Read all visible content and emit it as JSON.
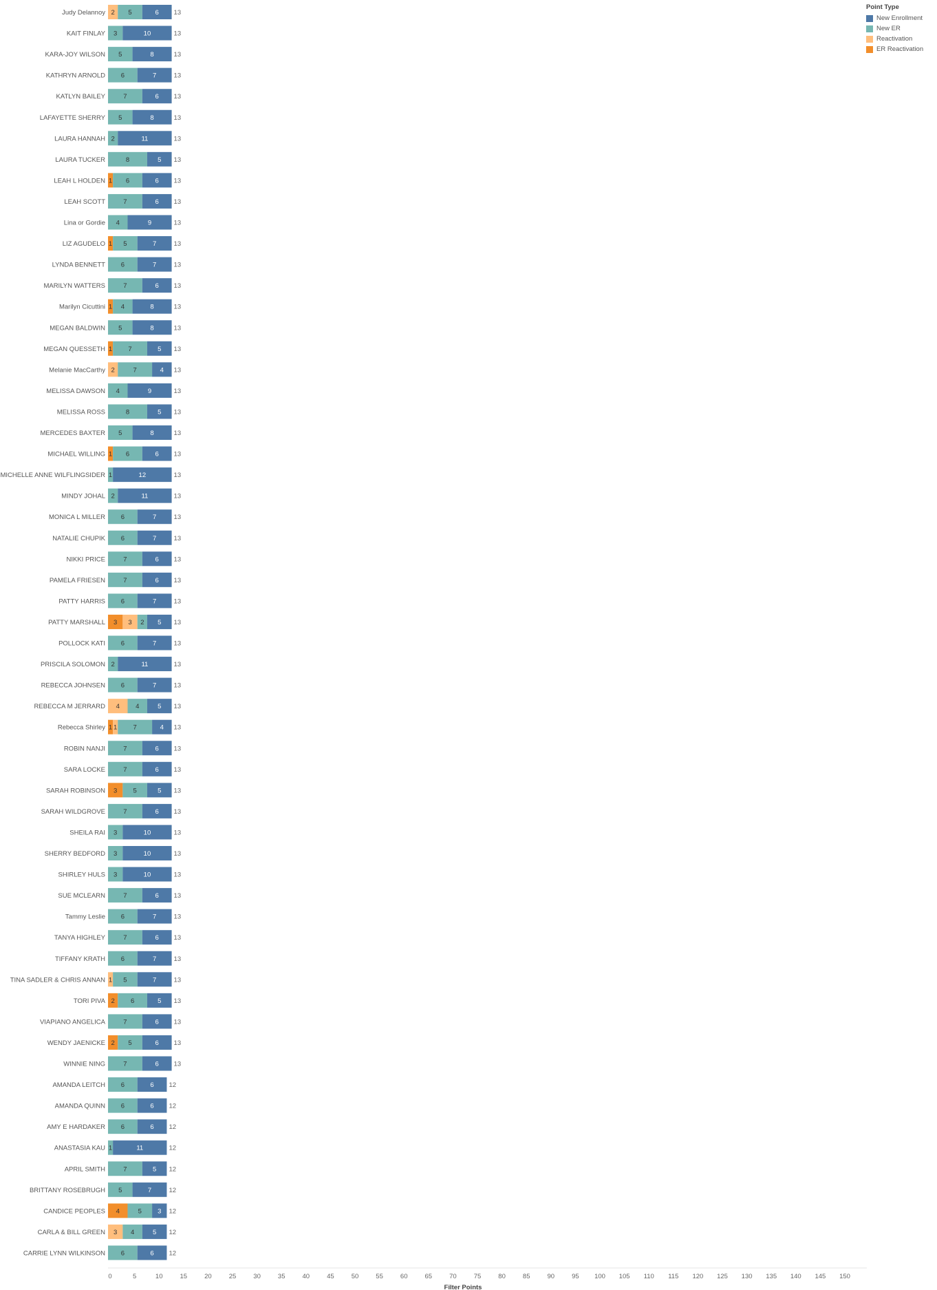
{
  "chart_data": {
    "type": "bar",
    "orientation": "horizontal",
    "stacked": true,
    "xlabel": "Filter Points",
    "xlim": [
      0,
      150
    ],
    "xticks": [
      0,
      5,
      10,
      15,
      20,
      25,
      30,
      35,
      40,
      45,
      50,
      55,
      60,
      65,
      70,
      75,
      80,
      85,
      90,
      95,
      100,
      105,
      110,
      115,
      120,
      125,
      130,
      135,
      140,
      145,
      150
    ],
    "grid": false,
    "legend": {
      "title": "Point Type",
      "placement": "top-right",
      "items": [
        "New Enrollment",
        "New ER",
        "Reactivation",
        "ER Reactivation"
      ]
    },
    "stack_order": [
      "ER Reactivation",
      "Reactivation",
      "New ER",
      "New Enrollment"
    ],
    "colors": {
      "New Enrollment": "#4e79a7",
      "New ER": "#76b7b2",
      "Reactivation": "#ffbe7d",
      "ER Reactivation": "#f28e2b"
    },
    "rows": [
      {
        "name": "Judy Delannoy",
        "er_reactivation": 0,
        "reactivation": 2,
        "new_er": 5,
        "new_enrollment": 6,
        "total": 13
      },
      {
        "name": "KAIT FINLAY",
        "er_reactivation": 0,
        "reactivation": 0,
        "new_er": 3,
        "new_enrollment": 10,
        "total": 13
      },
      {
        "name": "KARA-JOY  WILSON",
        "er_reactivation": 0,
        "reactivation": 0,
        "new_er": 5,
        "new_enrollment": 8,
        "total": 13
      },
      {
        "name": "KATHRYN ARNOLD",
        "er_reactivation": 0,
        "reactivation": 0,
        "new_er": 6,
        "new_enrollment": 7,
        "total": 13
      },
      {
        "name": "KATLYN BAILEY",
        "er_reactivation": 0,
        "reactivation": 0,
        "new_er": 7,
        "new_enrollment": 6,
        "total": 13
      },
      {
        "name": "LAFAYETTE SHERRY",
        "er_reactivation": 0,
        "reactivation": 0,
        "new_er": 5,
        "new_enrollment": 8,
        "total": 13
      },
      {
        "name": "LAURA  HANNAH",
        "er_reactivation": 0,
        "reactivation": 0,
        "new_er": 2,
        "new_enrollment": 11,
        "total": 13
      },
      {
        "name": "LAURA TUCKER",
        "er_reactivation": 0,
        "reactivation": 0,
        "new_er": 8,
        "new_enrollment": 5,
        "total": 13
      },
      {
        "name": "LEAH L HOLDEN",
        "er_reactivation": 1,
        "reactivation": 0,
        "new_er": 6,
        "new_enrollment": 6,
        "total": 13
      },
      {
        "name": "LEAH SCOTT",
        "er_reactivation": 0,
        "reactivation": 0,
        "new_er": 7,
        "new_enrollment": 6,
        "total": 13
      },
      {
        "name": "Lina or Gordie",
        "er_reactivation": 0,
        "reactivation": 0,
        "new_er": 4,
        "new_enrollment": 9,
        "total": 13
      },
      {
        "name": "LIZ AGUDELO",
        "er_reactivation": 1,
        "reactivation": 0,
        "new_er": 5,
        "new_enrollment": 7,
        "total": 13
      },
      {
        "name": "LYNDA BENNETT",
        "er_reactivation": 0,
        "reactivation": 0,
        "new_er": 6,
        "new_enrollment": 7,
        "total": 13
      },
      {
        "name": "MARILYN  WATTERS",
        "er_reactivation": 0,
        "reactivation": 0,
        "new_er": 7,
        "new_enrollment": 6,
        "total": 13
      },
      {
        "name": "Marilyn Cicuttini",
        "er_reactivation": 1,
        "reactivation": 0,
        "new_er": 4,
        "new_enrollment": 8,
        "total": 13
      },
      {
        "name": "MEGAN BALDWIN",
        "er_reactivation": 0,
        "reactivation": 0,
        "new_er": 5,
        "new_enrollment": 8,
        "total": 13
      },
      {
        "name": "MEGAN QUESSETH",
        "er_reactivation": 1,
        "reactivation": 0,
        "new_er": 7,
        "new_enrollment": 5,
        "total": 13
      },
      {
        "name": "Melanie MacCarthy",
        "er_reactivation": 0,
        "reactivation": 2,
        "new_er": 7,
        "new_enrollment": 4,
        "total": 13
      },
      {
        "name": "MELISSA  DAWSON",
        "er_reactivation": 0,
        "reactivation": 0,
        "new_er": 4,
        "new_enrollment": 9,
        "total": 13
      },
      {
        "name": "MELISSA  ROSS",
        "er_reactivation": 0,
        "reactivation": 0,
        "new_er": 8,
        "new_enrollment": 5,
        "total": 13
      },
      {
        "name": "MERCEDES BAXTER",
        "er_reactivation": 0,
        "reactivation": 0,
        "new_er": 5,
        "new_enrollment": 8,
        "total": 13
      },
      {
        "name": "MICHAEL WILLING",
        "er_reactivation": 1,
        "reactivation": 0,
        "new_er": 6,
        "new_enrollment": 6,
        "total": 13
      },
      {
        "name": "MICHELLE ANNE WILFLINGSIDER",
        "er_reactivation": 0,
        "reactivation": 0,
        "new_er": 1,
        "new_enrollment": 12,
        "total": 13
      },
      {
        "name": "MINDY JOHAL",
        "er_reactivation": 0,
        "reactivation": 0,
        "new_er": 2,
        "new_enrollment": 11,
        "total": 13
      },
      {
        "name": "MONICA L MILLER",
        "er_reactivation": 0,
        "reactivation": 0,
        "new_er": 6,
        "new_enrollment": 7,
        "total": 13
      },
      {
        "name": "NATALIE CHUPIK",
        "er_reactivation": 0,
        "reactivation": 0,
        "new_er": 6,
        "new_enrollment": 7,
        "total": 13
      },
      {
        "name": "NIKKI  PRICE",
        "er_reactivation": 0,
        "reactivation": 0,
        "new_er": 7,
        "new_enrollment": 6,
        "total": 13
      },
      {
        "name": "PAMELA FRIESEN",
        "er_reactivation": 0,
        "reactivation": 0,
        "new_er": 7,
        "new_enrollment": 6,
        "total": 13
      },
      {
        "name": "PATTY  HARRIS",
        "er_reactivation": 0,
        "reactivation": 0,
        "new_er": 6,
        "new_enrollment": 7,
        "total": 13
      },
      {
        "name": "PATTY  MARSHALL",
        "er_reactivation": 3,
        "reactivation": 3,
        "new_er": 2,
        "new_enrollment": 5,
        "total": 13
      },
      {
        "name": "POLLOCK KATI",
        "er_reactivation": 0,
        "reactivation": 0,
        "new_er": 6,
        "new_enrollment": 7,
        "total": 13
      },
      {
        "name": "PRISCILA SOLOMON",
        "er_reactivation": 0,
        "reactivation": 0,
        "new_er": 2,
        "new_enrollment": 11,
        "total": 13
      },
      {
        "name": "REBECCA JOHNSEN",
        "er_reactivation": 0,
        "reactivation": 0,
        "new_er": 6,
        "new_enrollment": 7,
        "total": 13
      },
      {
        "name": "REBECCA M JERRARD",
        "er_reactivation": 0,
        "reactivation": 4,
        "new_er": 4,
        "new_enrollment": 5,
        "total": 13
      },
      {
        "name": "Rebecca Shirley",
        "er_reactivation": 1,
        "reactivation": 1,
        "new_er": 7,
        "new_enrollment": 4,
        "total": 13
      },
      {
        "name": "ROBIN  NANJI",
        "er_reactivation": 0,
        "reactivation": 0,
        "new_er": 7,
        "new_enrollment": 6,
        "total": 13
      },
      {
        "name": "SARA LOCKE",
        "er_reactivation": 0,
        "reactivation": 0,
        "new_er": 7,
        "new_enrollment": 6,
        "total": 13
      },
      {
        "name": "SARAH ROBINSON",
        "er_reactivation": 3,
        "reactivation": 0,
        "new_er": 5,
        "new_enrollment": 5,
        "total": 13
      },
      {
        "name": "SARAH WILDGROVE",
        "er_reactivation": 0,
        "reactivation": 0,
        "new_er": 7,
        "new_enrollment": 6,
        "total": 13
      },
      {
        "name": "SHEILA RAI",
        "er_reactivation": 0,
        "reactivation": 0,
        "new_er": 3,
        "new_enrollment": 10,
        "total": 13
      },
      {
        "name": "SHERRY BEDFORD",
        "er_reactivation": 0,
        "reactivation": 0,
        "new_er": 3,
        "new_enrollment": 10,
        "total": 13
      },
      {
        "name": "SHIRLEY HULS",
        "er_reactivation": 0,
        "reactivation": 0,
        "new_er": 3,
        "new_enrollment": 10,
        "total": 13
      },
      {
        "name": "SUE MCLEARN",
        "er_reactivation": 0,
        "reactivation": 0,
        "new_er": 7,
        "new_enrollment": 6,
        "total": 13
      },
      {
        "name": "Tammy Leslie",
        "er_reactivation": 0,
        "reactivation": 0,
        "new_er": 6,
        "new_enrollment": 7,
        "total": 13
      },
      {
        "name": "TANYA HIGHLEY",
        "er_reactivation": 0,
        "reactivation": 0,
        "new_er": 7,
        "new_enrollment": 6,
        "total": 13
      },
      {
        "name": "TIFFANY  KRATH",
        "er_reactivation": 0,
        "reactivation": 0,
        "new_er": 6,
        "new_enrollment": 7,
        "total": 13
      },
      {
        "name": "TINA SADLER & CHRIS ANNAN",
        "er_reactivation": 0,
        "reactivation": 1,
        "new_er": 5,
        "new_enrollment": 7,
        "total": 13
      },
      {
        "name": "TORI PIVA",
        "er_reactivation": 2,
        "reactivation": 0,
        "new_er": 6,
        "new_enrollment": 5,
        "total": 13
      },
      {
        "name": "VIAPIANO ANGELICA",
        "er_reactivation": 0,
        "reactivation": 0,
        "new_er": 7,
        "new_enrollment": 6,
        "total": 13
      },
      {
        "name": "WENDY  JAENICKE",
        "er_reactivation": 2,
        "reactivation": 0,
        "new_er": 5,
        "new_enrollment": 6,
        "total": 13
      },
      {
        "name": "WINNIE  NING",
        "er_reactivation": 0,
        "reactivation": 0,
        "new_er": 7,
        "new_enrollment": 6,
        "total": 13
      },
      {
        "name": "AMANDA  LEITCH",
        "er_reactivation": 0,
        "reactivation": 0,
        "new_er": 6,
        "new_enrollment": 6,
        "total": 12
      },
      {
        "name": "AMANDA  QUINN",
        "er_reactivation": 0,
        "reactivation": 0,
        "new_er": 6,
        "new_enrollment": 6,
        "total": 12
      },
      {
        "name": "AMY E HARDAKER",
        "er_reactivation": 0,
        "reactivation": 0,
        "new_er": 6,
        "new_enrollment": 6,
        "total": 12
      },
      {
        "name": "ANASTASIA KAU",
        "er_reactivation": 0,
        "reactivation": 0,
        "new_er": 1,
        "new_enrollment": 11,
        "total": 12
      },
      {
        "name": "APRIL  SMITH",
        "er_reactivation": 0,
        "reactivation": 0,
        "new_er": 7,
        "new_enrollment": 5,
        "total": 12
      },
      {
        "name": "BRITTANY  ROSEBRUGH",
        "er_reactivation": 0,
        "reactivation": 0,
        "new_er": 5,
        "new_enrollment": 7,
        "total": 12
      },
      {
        "name": "CANDICE  PEOPLES",
        "er_reactivation": 4,
        "reactivation": 0,
        "new_er": 5,
        "new_enrollment": 3,
        "total": 12
      },
      {
        "name": "CARLA & BILL GREEN",
        "er_reactivation": 0,
        "reactivation": 3,
        "new_er": 4,
        "new_enrollment": 5,
        "total": 12
      },
      {
        "name": "CARRIE LYNN WILKINSON",
        "er_reactivation": 0,
        "reactivation": 0,
        "new_er": 6,
        "new_enrollment": 6,
        "total": 12
      }
    ]
  }
}
